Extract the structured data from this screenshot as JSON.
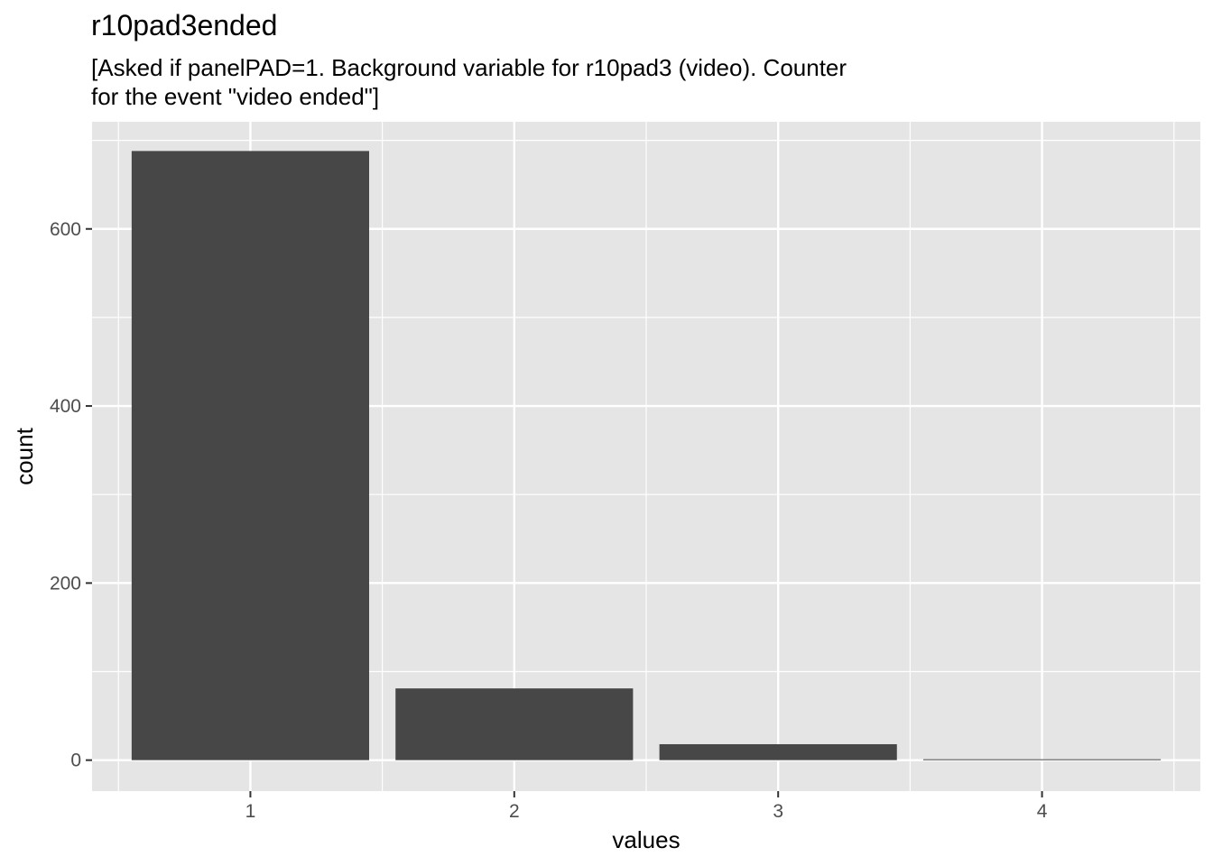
{
  "chart_data": {
    "type": "bar",
    "title": "r10pad3ended",
    "subtitle_lines": [
      "[Asked if panelPAD=1. Background variable for r10pad3 (video). Counter",
      "for the event \"video ended\"]"
    ],
    "xlabel": "values",
    "ylabel": "count",
    "categories": [
      "1",
      "2",
      "3",
      "4"
    ],
    "values": [
      688,
      81,
      18,
      1
    ],
    "ylim": [
      -35,
      721
    ],
    "yticks": [
      0,
      200,
      400,
      600
    ],
    "grid": true,
    "bar_color": "#474747",
    "panel_color": "#e5e5e5",
    "grid_color": "#ffffff"
  }
}
